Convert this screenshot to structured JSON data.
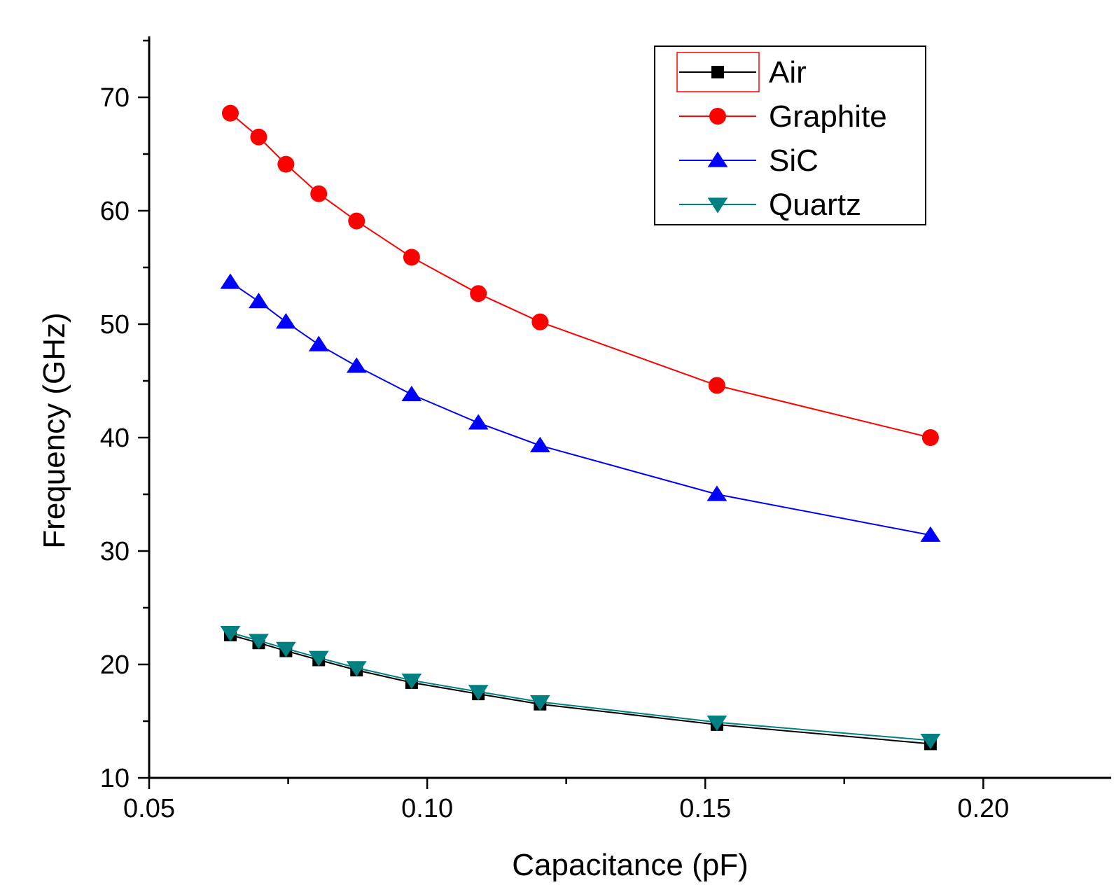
{
  "chart_data": {
    "type": "line",
    "title": "",
    "xlabel": "Capacitance (pF)",
    "ylabel": "Frequency (GHz)",
    "xlim": [
      0.05,
      0.223
    ],
    "ylim": [
      10,
      75
    ],
    "x_ticks": [
      0.05,
      0.1,
      0.15,
      0.2
    ],
    "x_tick_labels": [
      "0.05",
      "0.10",
      "0.15",
      "0.20"
    ],
    "x_minor_ticks": [
      0.075,
      0.125,
      0.175
    ],
    "y_ticks": [
      10,
      20,
      30,
      40,
      50,
      60,
      70
    ],
    "y_tick_labels": [
      "10",
      "20",
      "30",
      "40",
      "50",
      "60",
      "70"
    ],
    "y_minor_ticks": [
      15,
      25,
      35,
      45,
      55,
      65,
      75
    ],
    "grid": false,
    "legend_position": "top-right",
    "x": [
      0.0646,
      0.0697,
      0.0746,
      0.0805,
      0.0873,
      0.0972,
      0.1092,
      0.1203,
      0.1521,
      0.1905
    ],
    "series": [
      {
        "name": "Air",
        "color": "#000000",
        "marker": "square",
        "values": [
          22.6,
          21.9,
          21.2,
          20.4,
          19.5,
          18.4,
          17.4,
          16.5,
          14.7,
          13.0
        ]
      },
      {
        "name": "Graphite",
        "color": "#ff0000",
        "marker": "circle",
        "values": [
          68.6,
          66.5,
          64.1,
          61.5,
          59.1,
          55.9,
          52.7,
          50.2,
          44.6,
          40.0
        ]
      },
      {
        "name": "SiC",
        "color": "#0000ff",
        "marker": "triangle-up",
        "values": [
          53.7,
          52.0,
          50.2,
          48.2,
          46.3,
          43.8,
          41.3,
          39.3,
          35.0,
          31.4
        ]
      },
      {
        "name": "Quartz",
        "color": "#008080",
        "marker": "triangle-down",
        "values": [
          22.8,
          22.1,
          21.4,
          20.6,
          19.7,
          18.6,
          17.6,
          16.7,
          14.9,
          13.3
        ]
      }
    ]
  }
}
